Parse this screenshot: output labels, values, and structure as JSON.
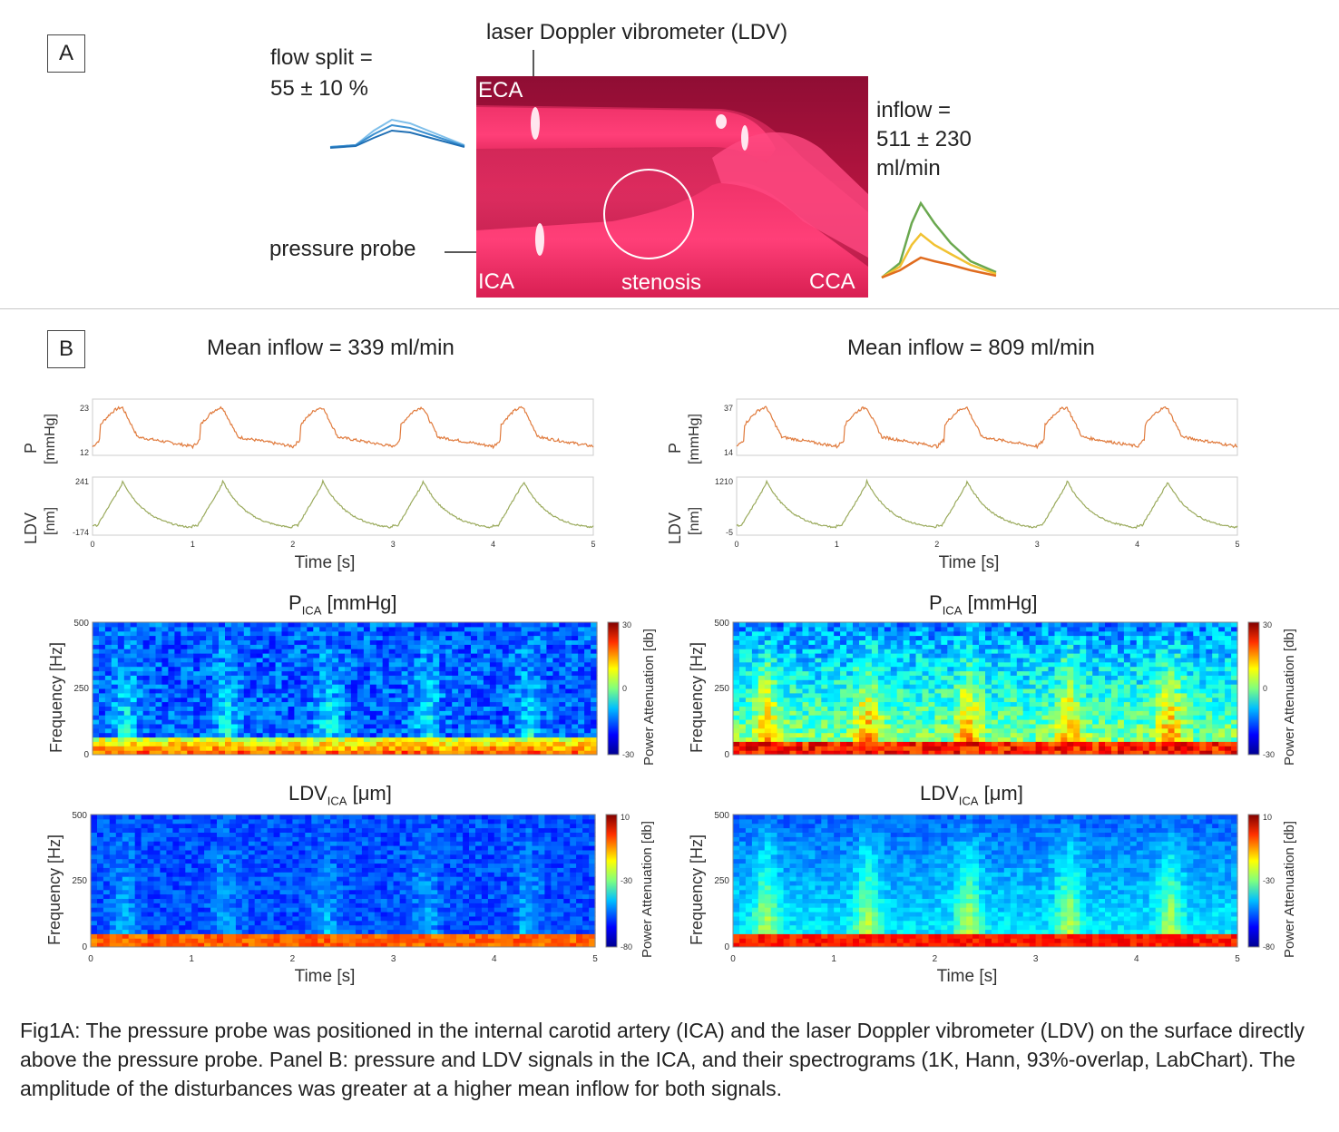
{
  "panelA": {
    "letter": "A",
    "ldv_label": "laser Doppler vibrometer (LDV)",
    "flow_split_line1": "flow split =",
    "flow_split_line2": "55 ± 10 %",
    "inflow_line1": "inflow =",
    "inflow_line2": "511 ± 230",
    "inflow_line3": "ml/min",
    "pressure_probe": "pressure probe",
    "eca": "ECA",
    "ica": "ICA",
    "stenosis": "stenosis",
    "cca": "CCA"
  },
  "panelB": {
    "letter": "B",
    "left_title": "Mean inflow = 339 ml/min",
    "right_title": "Mean inflow = 809 ml/min",
    "time_label": "Time [s]",
    "freq_label": "Frequency [Hz]",
    "power_label": "Power Attenuation [db]",
    "pica_spec_title_main": "P",
    "ica_sub": "ICA",
    "pica_spec_title_unit": " [mmHg]",
    "ldv_spec_title_main": "LDV",
    "ldv_spec_title_unit": " [μm]",
    "pica_axis_top": "P",
    "pica_axis_bottom": "[mmHg]",
    "ldv_axis_top": "LDV",
    "ldv_axis_bottom": "[nm]"
  },
  "ticks": {
    "time": [
      "0",
      "1",
      "2",
      "3",
      "4",
      "5"
    ],
    "freq": [
      "0",
      "250",
      "500"
    ],
    "left_pica_y": [
      "12",
      "23"
    ],
    "left_ldv_y": [
      "-174",
      "241"
    ],
    "right_pica_y": [
      "14",
      "37"
    ],
    "right_ldv_y": [
      "-5",
      "1210"
    ],
    "cb_p": [
      "30",
      "0",
      "-30"
    ],
    "cb_ldv_left": [
      "10",
      "-30",
      "-80"
    ],
    "cb_ldv_right": [
      "10",
      "-30",
      "-80"
    ]
  },
  "caption": "Fig1A: The pressure probe was positioned in the internal carotid artery (ICA) and the laser Doppler vibrometer (LDV) on the surface directly above the pressure probe. Panel B: pressure and LDV signals in the ICA, and their spectrograms (1K, Hann, 93%-overlap, LabChart). The amplitude of the disturbances was greater at a higher mean inflow for both signals.",
  "colors": {
    "pressure_trace": "#e07a3c",
    "ldv_trace": "#9aaa5c",
    "flow_split": "#3a8fd0",
    "inflow_green": "#6aa84f",
    "inflow_yellow": "#f1c232",
    "inflow_orange": "#e06c1f",
    "photo_red": "#d81f52"
  }
}
